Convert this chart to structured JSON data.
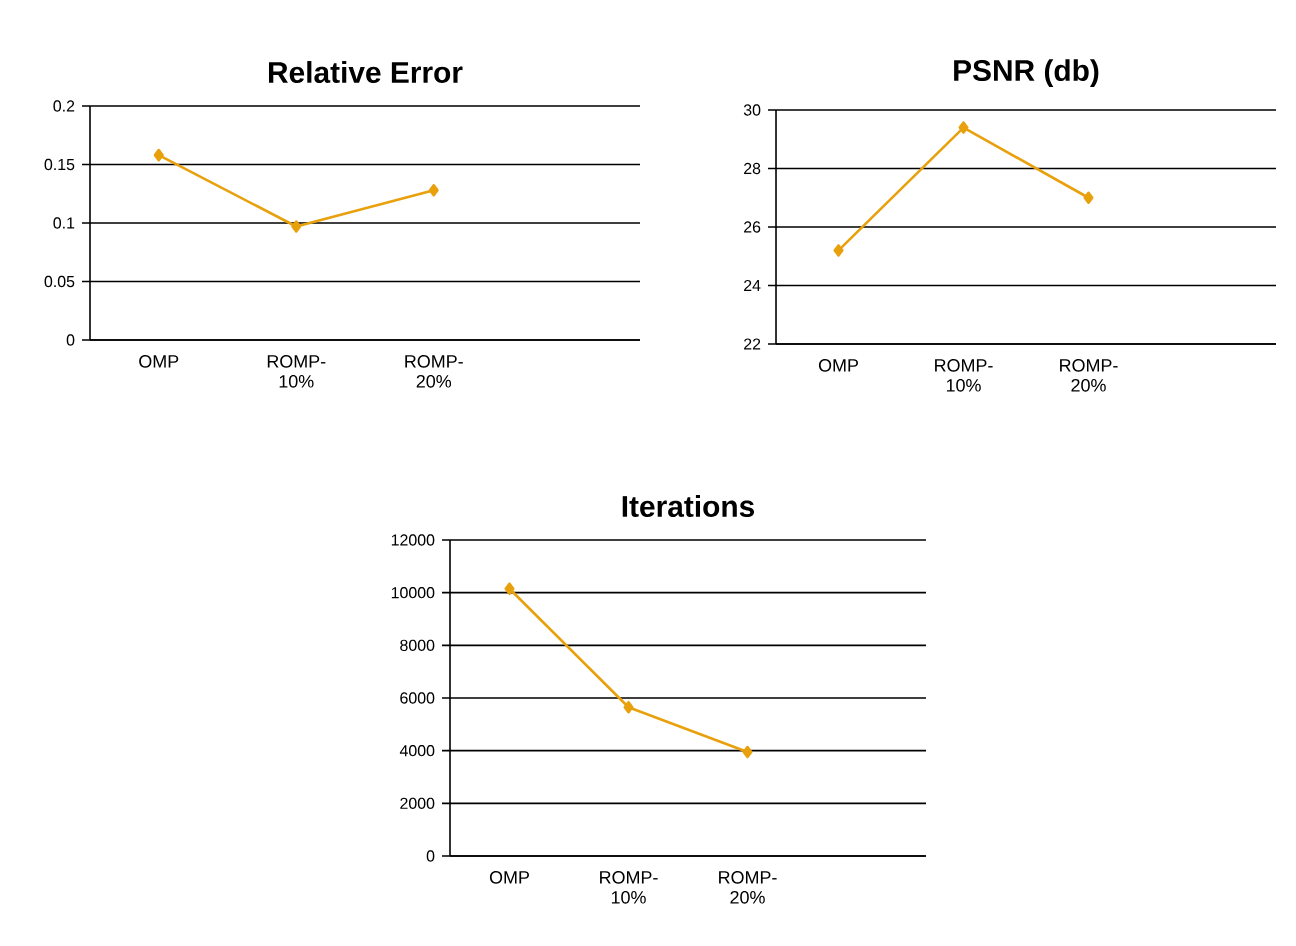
{
  "chart_data": [
    {
      "type": "line",
      "title": "Relative Error",
      "categories": [
        "OMP",
        "ROMP-10%",
        "ROMP-20%",
        null
      ],
      "values": [
        0.158,
        0.097,
        0.128,
        null
      ],
      "color": "#e8a10c",
      "ylim": [
        0,
        0.2
      ],
      "yticks": [
        0,
        0.05,
        0.1,
        0.15,
        0.2
      ],
      "grid": "y",
      "marker": "diamond",
      "line_style": "solid",
      "legend": false
    },
    {
      "type": "line",
      "title": "PSNR (db)",
      "categories": [
        "OMP",
        "ROMP-10%",
        "ROMP-20%",
        null
      ],
      "values": [
        25.2,
        29.4,
        27.0,
        null
      ],
      "color": "#e8a10c",
      "ylim": [
        22,
        30
      ],
      "yticks": [
        22,
        24,
        26,
        28,
        30
      ],
      "grid": "y",
      "marker": "diamond",
      "line_style": "solid",
      "legend": false
    },
    {
      "type": "line",
      "title": "Iterations",
      "categories": [
        "OMP",
        "ROMP-10%",
        "ROMP-20%",
        null
      ],
      "values": [
        10150,
        5650,
        3950,
        null
      ],
      "color": "#e8a10c",
      "ylim": [
        0,
        12000
      ],
      "yticks": [
        0,
        2000,
        4000,
        6000,
        8000,
        10000,
        12000
      ],
      "grid": "y",
      "marker": "diamond",
      "line_style": "solid",
      "legend": false
    }
  ]
}
